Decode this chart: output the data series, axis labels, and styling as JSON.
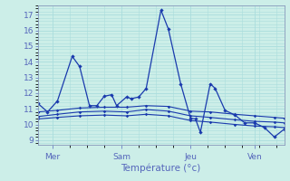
{
  "background_color": "#cceee8",
  "grid_color": "#aadddd",
  "line_color": "#1a3aad",
  "xlabel": "Température (°c)",
  "ylabel_ticks": [
    9,
    10,
    11,
    12,
    13,
    14,
    15,
    16,
    17
  ],
  "xlabels": [
    "Mer",
    "Sam",
    "Jeu",
    "Ven"
  ],
  "xlabels_x": [
    6,
    34,
    62,
    88
  ],
  "total_points": 100,
  "line1_x": [
    0,
    4,
    8,
    14,
    17,
    21,
    24,
    27,
    30,
    32,
    36,
    38,
    41,
    44,
    50,
    53,
    58,
    62,
    64,
    66,
    70,
    72,
    76,
    80,
    84,
    88,
    92,
    96,
    100
  ],
  "line1_y": [
    11.35,
    10.8,
    11.5,
    14.35,
    13.7,
    11.2,
    11.2,
    11.8,
    11.9,
    11.2,
    11.75,
    11.65,
    11.75,
    12.3,
    17.3,
    16.1,
    12.6,
    10.4,
    10.35,
    9.5,
    12.6,
    12.3,
    10.9,
    10.6,
    10.1,
    10.1,
    9.8,
    9.2,
    9.7
  ],
  "line2_x": [
    0,
    8,
    17,
    27,
    36,
    44,
    53,
    62,
    70,
    80,
    88,
    96,
    100
  ],
  "line2_y": [
    10.8,
    10.9,
    11.05,
    11.1,
    11.1,
    11.2,
    11.15,
    10.85,
    10.8,
    10.65,
    10.55,
    10.45,
    10.4
  ],
  "line3_x": [
    0,
    8,
    17,
    27,
    36,
    44,
    53,
    62,
    70,
    80,
    88,
    96,
    100
  ],
  "line3_y": [
    10.5,
    10.65,
    10.8,
    10.85,
    10.8,
    10.95,
    10.85,
    10.55,
    10.45,
    10.3,
    10.2,
    10.15,
    10.1
  ],
  "line4_x": [
    0,
    8,
    17,
    27,
    36,
    44,
    53,
    62,
    70,
    80,
    88,
    96,
    100
  ],
  "line4_y": [
    10.35,
    10.45,
    10.55,
    10.6,
    10.55,
    10.65,
    10.55,
    10.25,
    10.15,
    10.0,
    9.9,
    9.85,
    9.8
  ],
  "ylim": [
    8.7,
    17.6
  ],
  "tick_color": "#5566bb",
  "spine_color": "#8899bb",
  "figsize": [
    3.2,
    2.0
  ],
  "dpi": 100
}
